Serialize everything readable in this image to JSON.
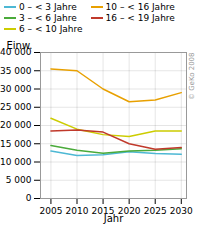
{
  "chart_data": {
    "type": "line",
    "x": [
      2005,
      2010,
      2015,
      2020,
      2025,
      2030
    ],
    "series": [
      {
        "name": "0 – < 3 Jahre",
        "color": "#4db8d4",
        "values": [
          13000,
          11800,
          12000,
          12800,
          12300,
          12100
        ]
      },
      {
        "name": "3 – < 6 Jahre",
        "color": "#4aaa3a",
        "values": [
          14500,
          13200,
          12400,
          13000,
          13200,
          13600
        ]
      },
      {
        "name": "6 – < 10 Jahre",
        "color": "#cccc00",
        "values": [
          22000,
          19000,
          17500,
          17000,
          18500,
          18500
        ]
      },
      {
        "name": "10 – < 16 Jahre",
        "color": "#e8a000",
        "values": [
          35500,
          35000,
          30000,
          26500,
          27000,
          29000
        ]
      },
      {
        "name": "16 – < 19 Jahre",
        "color": "#c0392b",
        "values": [
          18500,
          18800,
          18200,
          15000,
          13500,
          14000
        ]
      }
    ],
    "xlabel": "Jahr",
    "ylabel": "Einw.",
    "xlim": [
      2003,
      2031
    ],
    "xticks": [
      2005,
      2010,
      2015,
      2020,
      2025,
      2030
    ],
    "ylim": [
      0,
      40000
    ],
    "yticks": [
      0,
      {
        "value": 5000,
        "label": "5 000"
      },
      {
        "value": 10000,
        "label": "10 000"
      },
      {
        "value": 15000,
        "label": "15 000"
      },
      {
        "value": 20000,
        "label": "20 000"
      },
      {
        "value": 25000,
        "label": "25 000"
      },
      {
        "value": 30000,
        "label": "30 000"
      },
      {
        "value": 35000,
        "label": "35 000"
      },
      {
        "value": 40000,
        "label": "40 000"
      }
    ],
    "grid": true,
    "legend": "upper left",
    "annotations": [
      "© GeKo 2008"
    ]
  }
}
